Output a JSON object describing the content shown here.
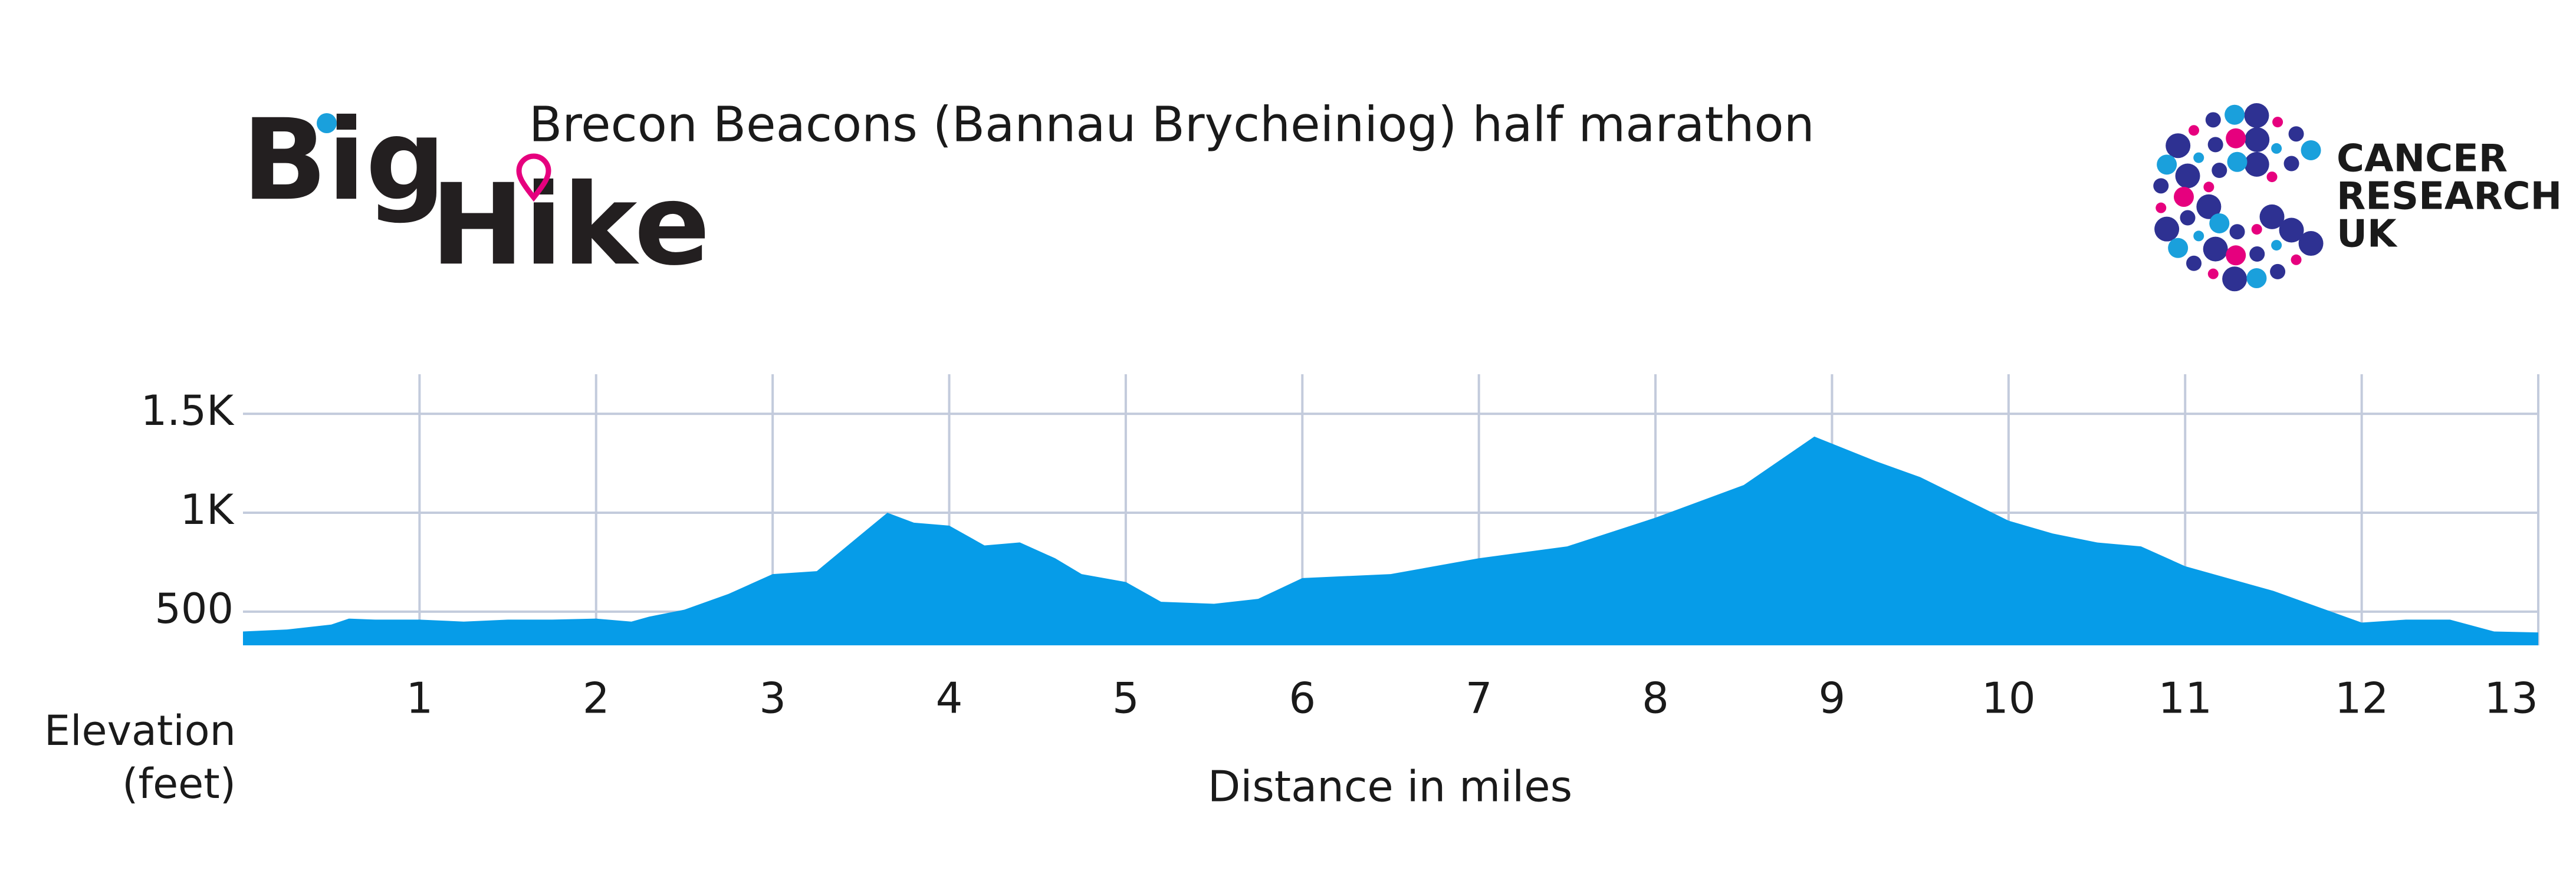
{
  "logo": {
    "big": "Big",
    "hike": "Hike"
  },
  "partner": {
    "line1": "CANCER",
    "line2": "RESEARCH",
    "line3": "UK"
  },
  "chart_data": {
    "type": "area",
    "title": "Brecon Beacons (Bannau Brycheiniog) half marathon",
    "x_label": "Distance in miles",
    "y_label": "Elevation (feet)",
    "x": [
      0,
      0.25,
      0.5,
      0.6,
      0.75,
      1,
      1.25,
      1.5,
      1.75,
      2,
      2.2,
      2.3,
      2.5,
      2.75,
      3,
      3.25,
      3.5,
      3.65,
      3.8,
      4,
      4.2,
      4.4,
      4.6,
      4.75,
      5,
      5.2,
      5.5,
      5.75,
      6,
      6.5,
      7,
      7.5,
      8,
      8.5,
      8.9,
      9.25,
      9.5,
      10,
      10.25,
      10.5,
      10.75,
      11,
      11.5,
      12,
      12.25,
      12.5,
      12.75,
      13
    ],
    "series": [
      {
        "name": "Elevation",
        "color": "#069ce8",
        "values": [
          400,
          410,
          435,
          465,
          460,
          460,
          450,
          460,
          460,
          465,
          450,
          475,
          510,
          590,
          690,
          705,
          890,
          1000,
          950,
          935,
          835,
          850,
          770,
          690,
          650,
          550,
          540,
          565,
          670,
          690,
          770,
          830,
          975,
          1140,
          1385,
          1260,
          1180,
          960,
          895,
          850,
          830,
          730,
          605,
          445,
          460,
          460,
          400,
          395
        ]
      }
    ],
    "xlim": [
      0,
      13
    ],
    "ylim": [
      330,
      1700
    ],
    "xticks": [
      1,
      2,
      3,
      4,
      5,
      6,
      7,
      8,
      9,
      10,
      11,
      12,
      13
    ],
    "yticks": [
      500,
      {
        "value": 1000,
        "label": "1K"
      },
      {
        "value": 1500,
        "label": "1.5K"
      }
    ],
    "grid": true
  }
}
